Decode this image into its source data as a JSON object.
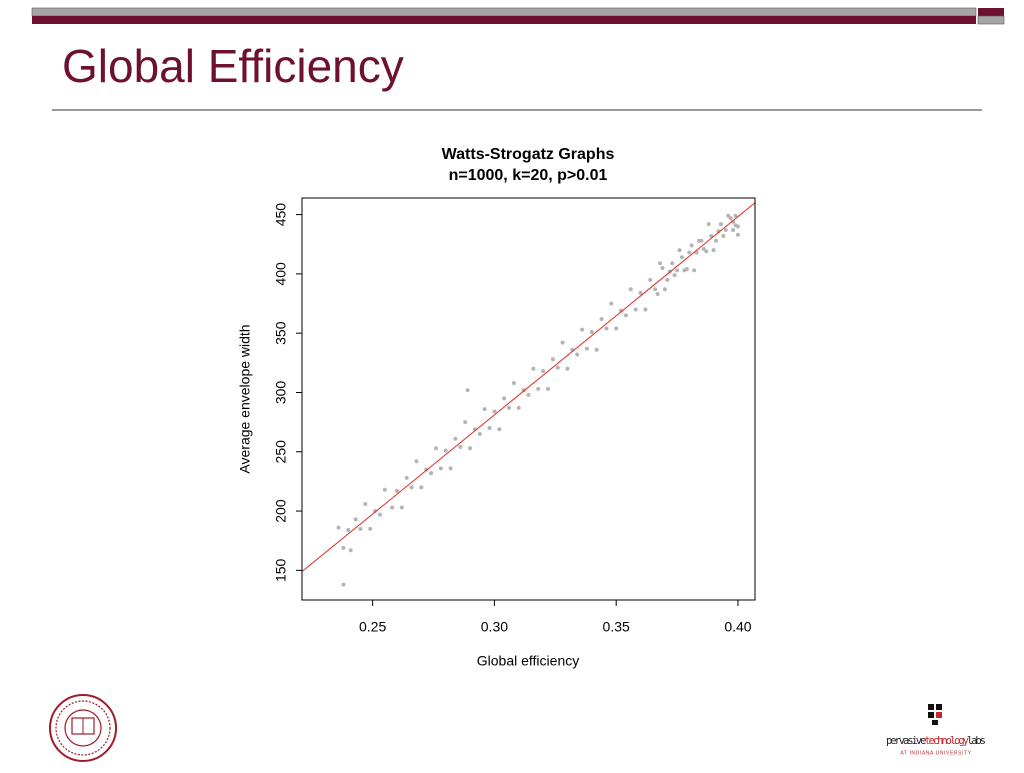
{
  "slide": {
    "title": "Global Efficiency",
    "logo": {
      "name_parts": [
        "pervasive",
        "technology",
        "labs"
      ],
      "subtitle": "AT INDIANA UNIVERSITY"
    }
  },
  "chart_data": {
    "type": "scatter",
    "title": [
      "Watts-Strogatz Graphs",
      "n=1000, k=20, p>0.01"
    ],
    "xlabel": "Global efficiency",
    "ylabel": "Average envelope width",
    "xlim": [
      0.221,
      0.407
    ],
    "ylim": [
      125,
      464
    ],
    "xticks": [
      0.25,
      {
        "value": 0.3,
        "label": "0.30"
      },
      0.35,
      {
        "value": 0.4,
        "label": "0.40"
      }
    ],
    "yticks": [
      150,
      200,
      250,
      300,
      350,
      400,
      450
    ],
    "grid": false,
    "color": "#b4b4b4",
    "x": [
      0.236,
      0.238,
      0.24,
      0.241,
      0.243,
      0.245,
      0.247,
      0.249,
      0.251,
      0.253,
      0.255,
      0.258,
      0.26,
      0.262,
      0.264,
      0.266,
      0.268,
      0.27,
      0.272,
      0.274,
      0.276,
      0.278,
      0.28,
      0.282,
      0.284,
      0.286,
      0.288,
      0.29,
      0.292,
      0.294,
      0.296,
      0.298,
      0.3,
      0.302,
      0.304,
      0.306,
      0.308,
      0.31,
      0.312,
      0.314,
      0.316,
      0.318,
      0.32,
      0.322,
      0.324,
      0.326,
      0.328,
      0.33,
      0.332,
      0.334,
      0.336,
      0.338,
      0.34,
      0.342,
      0.344,
      0.346,
      0.348,
      0.35,
      0.352,
      0.354,
      0.356,
      0.358,
      0.36,
      0.362,
      0.364,
      0.366,
      0.368,
      0.37,
      0.372,
      0.374,
      0.376,
      0.378,
      0.38,
      0.382,
      0.384,
      0.386,
      0.388,
      0.39,
      0.392,
      0.394,
      0.396,
      0.398,
      0.399,
      0.4,
      0.397,
      0.395,
      0.393,
      0.391,
      0.389,
      0.387,
      0.385,
      0.383,
      0.381,
      0.379,
      0.377,
      0.375,
      0.373,
      0.371,
      0.369,
      0.367,
      0.238,
      0.289,
      0.4,
      0.399,
      0.398
    ],
    "y": [
      186,
      169,
      184,
      167,
      193,
      185,
      206,
      185,
      200,
      197,
      218,
      203,
      217,
      203,
      228,
      220,
      242,
      220,
      235,
      232,
      253,
      236,
      251,
      236,
      261,
      254,
      275,
      253,
      269,
      265,
      286,
      270,
      284,
      269,
      295,
      287,
      308,
      287,
      302,
      298,
      320,
      303,
      318,
      303,
      328,
      321,
      342,
      320,
      336,
      332,
      353,
      337,
      351,
      336,
      362,
      354,
      375,
      354,
      369,
      365,
      387,
      370,
      384,
      370,
      395,
      387,
      409,
      387,
      402,
      399,
      420,
      403,
      418,
      403,
      428,
      421,
      442,
      420,
      436,
      432,
      449,
      437,
      449,
      433,
      447,
      437,
      442,
      428,
      432,
      419,
      428,
      418,
      424,
      404,
      414,
      403,
      409,
      395,
      405,
      383,
      138,
      302,
      440,
      441,
      444
    ],
    "trend_line": {
      "color": "#e8261e",
      "x": [
        0.221,
        0.407
      ],
      "y": [
        149,
        460
      ]
    }
  }
}
